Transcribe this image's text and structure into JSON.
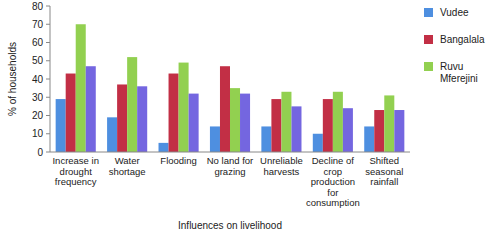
{
  "chart_data": {
    "type": "bar",
    "x_label": "Influences on livelihood",
    "y_label": "% of households",
    "categories": [
      "Increase in drought frequency",
      "Water shortage",
      "Flooding",
      "No land for grazing",
      "Unreliable harvests",
      "Decline of crop production for consumption",
      "Shifted seasonal rainfall"
    ],
    "series": [
      {
        "name": "Vudee",
        "color": "#4e8fe0",
        "values": [
          29,
          19,
          5,
          14,
          14,
          10,
          14
        ]
      },
      {
        "name": "Bangalala",
        "color": "#c22f45",
        "values": [
          43,
          37,
          43,
          47,
          29,
          29,
          23
        ]
      },
      {
        "name": "Ruvu Mferejini",
        "color": "#92d050",
        "values": [
          70,
          52,
          49,
          35,
          33,
          33,
          31
        ]
      },
      {
        "name": null,
        "color": "#7466e0",
        "values": [
          47,
          36,
          32,
          32,
          25,
          24,
          23
        ]
      }
    ],
    "ylim": [
      0,
      80
    ],
    "yticks": [
      0,
      10,
      20,
      30,
      40,
      50,
      60,
      70,
      80
    ],
    "grid": false,
    "legend": "right"
  }
}
